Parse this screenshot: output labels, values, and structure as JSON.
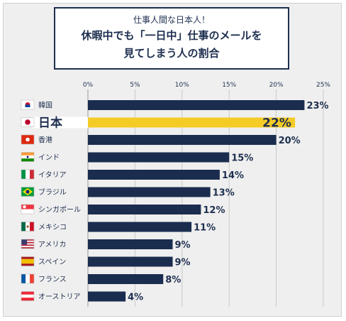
{
  "header": {
    "subtitle": "仕事人間な日本人！",
    "title_line1": "休暇中でも「一日中」仕事のメールを",
    "title_line2": "見てしまう人の割合"
  },
  "colors": {
    "bar": "#1b2d4f",
    "highlight": "#f5cb26",
    "text": "#1e2f4f"
  },
  "chart_data": {
    "type": "bar",
    "orientation": "horizontal",
    "title": "休暇中でも「一日中」仕事のメールを見てしまう人の割合",
    "subtitle": "仕事人間な日本人！",
    "categories": [
      "韓国",
      "日本",
      "香港",
      "インド",
      "イタリア",
      "ブラジル",
      "シンガポール",
      "メキシコ",
      "アメリカ",
      "スペイン",
      "フランス",
      "オーストリア"
    ],
    "values": [
      23,
      22,
      20,
      15,
      14,
      13,
      12,
      11,
      9,
      9,
      8,
      4
    ],
    "value_labels": [
      "23%",
      "22%",
      "20%",
      "15%",
      "14%",
      "13%",
      "12%",
      "11%",
      "9%",
      "9%",
      "8%",
      "4%"
    ],
    "flags": [
      "korea-flag",
      "japan-flag",
      "hongkong-flag",
      "india-flag",
      "italy-flag",
      "brazil-flag",
      "singapore-flag",
      "mexico-flag",
      "usa-flag",
      "spain-flag",
      "france-flag",
      "austria-flag"
    ],
    "highlight_index": 1,
    "xlim": [
      0,
      25
    ],
    "ticks": [
      0,
      5,
      10,
      15,
      20,
      25
    ],
    "tick_labels": [
      "0%",
      "5%",
      "10%",
      "15%",
      "20%",
      "25%"
    ],
    "grid": true
  }
}
